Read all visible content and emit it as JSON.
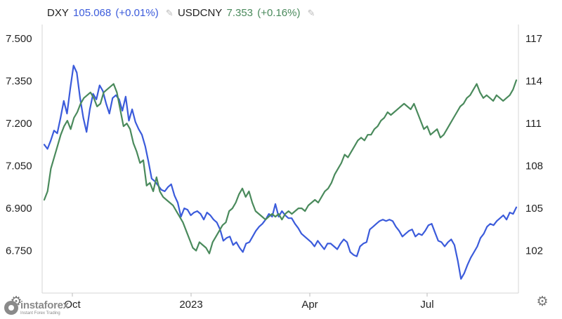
{
  "legend": [
    {
      "symbol": "DXY",
      "value": "105.068",
      "change": "(+0.01%)",
      "color": "#3b5bdb"
    },
    {
      "symbol": "USDCNY",
      "value": "7.353",
      "change": "(+0.16%)",
      "color": "#4a8a5c"
    }
  ],
  "icons": {
    "edit": "pencil-icon",
    "settings": "gear-icon"
  },
  "watermark": {
    "name": "instaforex",
    "tagline": "Instant Forex Trading"
  },
  "chart_data": {
    "type": "line",
    "x_tick_labels": [
      "Oct",
      "2023",
      "Apr",
      "Jul"
    ],
    "left_axis": {
      "series": "USDCNY",
      "ticks": [
        "7.500",
        "7.350",
        "7.200",
        "7.050",
        "6.900",
        "6.750"
      ],
      "range": [
        6.6,
        7.55
      ]
    },
    "right_axis": {
      "series": "DXY",
      "ticks": [
        "117",
        "114",
        "111",
        "108",
        "105",
        "102"
      ],
      "range": [
        99,
        118
      ]
    },
    "grid": false,
    "legend_position": "top-left",
    "series": [
      {
        "name": "DXY",
        "color": "#3b5bdb",
        "axis": "right",
        "values": [
          109.5,
          109.2,
          109.8,
          110.5,
          110.3,
          111.4,
          112.6,
          111.7,
          113.5,
          115.1,
          114.6,
          112.8,
          111.4,
          110.4,
          112.0,
          113.1,
          112.7,
          113.7,
          113.3,
          112.4,
          111.7,
          112.8,
          113.0,
          112.7,
          111.9,
          112.9,
          111.2,
          112.0,
          111.1,
          110.6,
          110.2,
          109.4,
          108.3,
          107.1,
          106.9,
          106.6,
          106.3,
          106.2,
          106.5,
          106.7,
          105.9,
          105.4,
          104.4,
          105.0,
          104.9,
          104.5,
          104.7,
          104.8,
          104.6,
          104.2,
          104.7,
          104.5,
          104.2,
          104.0,
          103.5,
          102.7,
          102.9,
          103.0,
          102.4,
          102.6,
          102.2,
          101.9,
          102.5,
          102.6,
          103.0,
          103.4,
          103.7,
          103.9,
          104.2,
          104.6,
          104.4,
          105.3,
          104.4,
          104.8,
          104.5,
          104.3,
          104.3,
          103.9,
          103.6,
          103.2,
          103.0,
          102.8,
          102.6,
          102.3,
          102.7,
          102.4,
          102.1,
          102.5,
          102.5,
          102.3,
          102.1,
          102.5,
          102.8,
          102.6,
          101.9,
          101.7,
          101.6,
          102.3,
          102.5,
          102.6,
          103.5,
          103.7,
          103.9,
          104.1,
          104.2,
          104.1,
          104.2,
          104.1,
          103.7,
          103.4,
          103.0,
          103.2,
          103.4,
          103.5,
          103.0,
          103.2,
          103.1,
          103.4,
          103.8,
          103.9,
          103.3,
          102.7,
          102.6,
          102.3,
          102.6,
          102.8,
          102.4,
          101.3,
          100.0,
          100.4,
          101.0,
          101.5,
          101.9,
          102.3,
          102.9,
          103.2,
          103.7,
          103.9,
          103.8,
          104.1,
          104.3,
          104.5,
          104.2,
          104.7,
          104.6,
          105.068
        ]
      },
      {
        "name": "USDCNY",
        "color": "#4a8a5c",
        "axis": "left",
        "values": [
          6.93,
          6.96,
          7.04,
          7.08,
          7.12,
          7.16,
          7.19,
          7.21,
          7.18,
          7.22,
          7.24,
          7.27,
          7.29,
          7.3,
          7.31,
          7.29,
          7.26,
          7.27,
          7.31,
          7.32,
          7.33,
          7.34,
          7.31,
          7.25,
          7.19,
          7.2,
          7.18,
          7.13,
          7.1,
          7.06,
          7.07,
          6.98,
          6.99,
          6.96,
          7.01,
          6.96,
          6.94,
          6.93,
          6.92,
          6.91,
          6.89,
          6.87,
          6.85,
          6.82,
          6.79,
          6.76,
          6.75,
          6.78,
          6.77,
          6.76,
          6.74,
          6.78,
          6.8,
          6.82,
          6.84,
          6.85,
          6.89,
          6.9,
          6.92,
          6.95,
          6.97,
          6.94,
          6.96,
          6.92,
          6.89,
          6.88,
          6.87,
          6.86,
          6.87,
          6.88,
          6.87,
          6.88,
          6.86,
          6.88,
          6.89,
          6.88,
          6.89,
          6.9,
          6.9,
          6.89,
          6.91,
          6.92,
          6.93,
          6.92,
          6.94,
          6.96,
          6.97,
          6.99,
          7.02,
          7.04,
          7.06,
          7.09,
          7.08,
          7.1,
          7.12,
          7.14,
          7.15,
          7.14,
          7.16,
          7.16,
          7.18,
          7.19,
          7.21,
          7.22,
          7.24,
          7.23,
          7.24,
          7.25,
          7.26,
          7.27,
          7.26,
          7.25,
          7.27,
          7.24,
          7.21,
          7.18,
          7.19,
          7.16,
          7.17,
          7.18,
          7.15,
          7.16,
          7.18,
          7.2,
          7.22,
          7.24,
          7.26,
          7.27,
          7.29,
          7.3,
          7.32,
          7.34,
          7.31,
          7.29,
          7.3,
          7.29,
          7.28,
          7.3,
          7.29,
          7.28,
          7.29,
          7.3,
          7.32,
          7.353
        ]
      }
    ]
  }
}
